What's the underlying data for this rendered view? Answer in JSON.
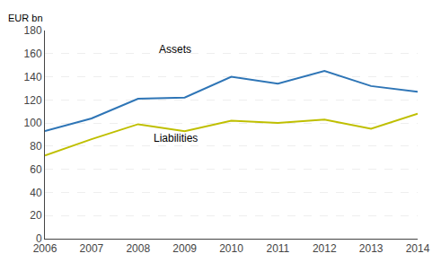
{
  "chart_data": {
    "type": "line",
    "ylabel": "EUR bn",
    "x": [
      2006,
      2007,
      2008,
      2009,
      2010,
      2011,
      2012,
      2013,
      2014
    ],
    "series": [
      {
        "color": "#2E75B6",
        "values": [
          93,
          104,
          121,
          122,
          140,
          134,
          145,
          132,
          127
        ]
      },
      {
        "color": "#BFBF00",
        "values": [
          72,
          86,
          99,
          93,
          102,
          100,
          103,
          95,
          108
        ]
      }
    ],
    "annotations": [
      {
        "text": "Assets",
        "x": 2008.8,
        "y": 157
      },
      {
        "text": "Liabilities",
        "x": 2008.8,
        "y": 80
      }
    ],
    "xlim": [
      2006,
      2014
    ],
    "xticks": [
      2006,
      2007,
      2008,
      2009,
      2010,
      2011,
      2012,
      2013,
      2014
    ],
    "ylim": [
      0,
      180
    ],
    "yticks": [
      0,
      20,
      40,
      60,
      80,
      100,
      120,
      140,
      160,
      180
    ],
    "grid": true
  }
}
